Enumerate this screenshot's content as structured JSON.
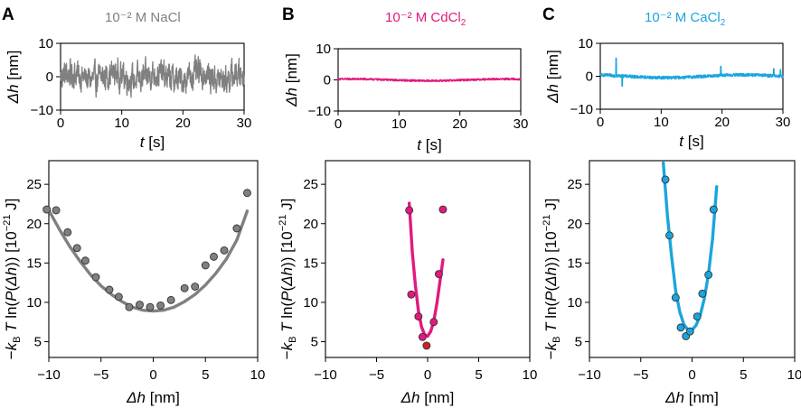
{
  "figure": {
    "panels": [
      {
        "letter": "A",
        "title": "10⁻² M NaCl",
        "color": "#808080",
        "trace": {
          "xlabel_sym": "t",
          "xlabel_unit": " [s]",
          "ylabel_sym": "Δh",
          "ylabel_unit": " [nm]",
          "xlim": [
            0,
            30
          ],
          "ylim": [
            -10,
            10
          ],
          "xticks": [
            0,
            10,
            20,
            30
          ],
          "yticks": [
            -10,
            0,
            10
          ],
          "xticklabels": [
            "0",
            "10",
            "20",
            "30"
          ],
          "yticklabels": [
            "−10",
            "0",
            "10"
          ],
          "amplitude": 3.6,
          "spike_times": [],
          "spike_heights": []
        },
        "potential": {
          "xlim": [
            -10,
            10
          ],
          "ylim": [
            3,
            28
          ],
          "xticks": [
            -10,
            -5,
            0,
            5,
            10
          ],
          "yticks": [
            5,
            10,
            15,
            20,
            25
          ],
          "xticklabels": [
            "−10",
            "−5",
            "0",
            "5",
            "10"
          ],
          "yticklabels": [
            "5",
            "10",
            "15",
            "20",
            "25"
          ],
          "points_x": [
            -10.2,
            -9.3,
            -8.2,
            -7.3,
            -6.5,
            -5.5,
            -4.2,
            -3.3,
            -2.3,
            -1.3,
            -0.3,
            0.7,
            1.7,
            3.0,
            4.0,
            5.0,
            5.8,
            6.8,
            8.0,
            9.0
          ],
          "points_y": [
            21.8,
            21.7,
            18.9,
            16.9,
            15.3,
            13.2,
            11.6,
            10.7,
            9.4,
            9.7,
            9.4,
            9.6,
            10.3,
            11.8,
            12.0,
            14.7,
            15.8,
            16.6,
            19.4,
            23.9
          ],
          "fit_x": [
            -10.0,
            -9.0,
            -8.0,
            -7.0,
            -6.0,
            -5.0,
            -4.0,
            -3.0,
            -2.0,
            -1.0,
            0.0,
            1.0,
            2.0,
            3.0,
            4.0,
            5.0,
            6.0,
            7.0,
            8.0,
            9.0
          ],
          "fit_y": [
            21.7,
            19.3,
            17.1,
            15.2,
            13.5,
            12.1,
            11.0,
            10.1,
            9.4,
            9.0,
            8.9,
            9.0,
            9.4,
            10.1,
            11.0,
            12.2,
            13.7,
            15.5,
            17.9,
            21.6
          ],
          "highlight_x": null,
          "highlight_y": null
        }
      },
      {
        "letter": "B",
        "title_main": "10⁻² M CdCl",
        "title_sub": "2",
        "color": "#e2197e",
        "trace": {
          "xlabel_sym": "t",
          "xlabel_unit": " [s]",
          "ylabel_sym": "Δh",
          "ylabel_unit": " [nm]",
          "xlim": [
            0,
            30
          ],
          "ylim": [
            -10,
            10
          ],
          "xticks": [
            0,
            10,
            20,
            30
          ],
          "yticks": [
            -10,
            0,
            10
          ],
          "xticklabels": [
            "0",
            "10",
            "20",
            "30"
          ],
          "yticklabels": [
            "−10",
            "0",
            "10"
          ],
          "amplitude": 0.4,
          "spike_times": [],
          "spike_heights": []
        },
        "potential": {
          "xlim": [
            -10,
            10
          ],
          "ylim": [
            3,
            28
          ],
          "xticks": [
            -10,
            -5,
            0,
            5,
            10
          ],
          "yticks": [
            5,
            10,
            15,
            20,
            25
          ],
          "xticklabels": [
            "−10",
            "−5",
            "0",
            "5",
            "10"
          ],
          "yticklabels": [
            "5",
            "10",
            "15",
            "20",
            "25"
          ],
          "points_x": [
            -1.8,
            -1.6,
            -0.9,
            -0.5,
            0.6,
            1.1,
            1.5
          ],
          "points_y": [
            21.7,
            11.0,
            8.2,
            5.6,
            7.5,
            13.6,
            21.8
          ],
          "fit_x": [
            -1.8,
            -1.5,
            -1.2,
            -0.9,
            -0.6,
            -0.3,
            0.0,
            0.3,
            0.6,
            0.9,
            1.2,
            1.5
          ],
          "fit_y": [
            22.6,
            16.4,
            12.2,
            8.9,
            6.9,
            5.9,
            5.7,
            6.3,
            7.6,
            9.8,
            12.6,
            15.4
          ],
          "highlight_x": -0.1,
          "highlight_y": 4.5,
          "highlight_color": "#d41f26"
        }
      },
      {
        "letter": "C",
        "title_main": "10⁻² M CaCl",
        "title_sub": "2",
        "color": "#1ba5de",
        "trace": {
          "xlabel_sym": "t",
          "xlabel_unit": " [s]",
          "ylabel_sym": "Δh",
          "ylabel_unit": " [nm]",
          "xlim": [
            0,
            30
          ],
          "ylim": [
            -10,
            10
          ],
          "xticks": [
            0,
            10,
            20,
            30
          ],
          "yticks": [
            -10,
            0,
            10
          ],
          "xticklabels": [
            "0",
            "10",
            "20",
            "30"
          ],
          "yticklabels": [
            "−10",
            "0",
            "10"
          ],
          "amplitude": 0.6,
          "spike_times": [
            2.6,
            3.6,
            19.8,
            28.5,
            29.6
          ],
          "spike_heights": [
            5.5,
            -3.0,
            3.0,
            2.3,
            2.0
          ]
        },
        "potential": {
          "xlim": [
            -10,
            10
          ],
          "ylim": [
            3,
            28
          ],
          "xticks": [
            -10,
            -5,
            0,
            5,
            10
          ],
          "yticks": [
            5,
            10,
            15,
            20,
            25
          ],
          "xticklabels": [
            "−10",
            "−5",
            "0",
            "5",
            "10"
          ],
          "yticklabels": [
            "5",
            "10",
            "15",
            "20",
            "25"
          ],
          "points_x": [
            -2.6,
            -2.2,
            -1.6,
            -1.1,
            -0.6,
            -0.2,
            0.5,
            1.0,
            1.6,
            2.1
          ],
          "points_y": [
            25.6,
            18.5,
            10.6,
            6.8,
            5.7,
            6.3,
            8.2,
            11.1,
            13.5,
            21.8
          ],
          "fit_x": [
            -2.8,
            -2.4,
            -2.0,
            -1.6,
            -1.2,
            -0.8,
            -0.4,
            0.0,
            0.4,
            0.8,
            1.2,
            1.6,
            2.0,
            2.4
          ],
          "fit_y": [
            27.7,
            21.0,
            15.9,
            11.5,
            8.8,
            7.2,
            6.5,
            6.5,
            7.1,
            8.4,
            10.5,
            13.6,
            18.1,
            24.7
          ],
          "highlight_x": null,
          "highlight_y": null
        }
      }
    ],
    "trace_axis_labels": {
      "x": "t [s]",
      "y": "Δh [nm]"
    },
    "potential_axis_labels": {
      "x": "Δh [nm]",
      "y_prefix": "−",
      "y_k": "k",
      "y_kb_sub": "B",
      "y_T": " T",
      "y_ln": " ln(",
      "y_P": "P",
      "y_paren_open": "(",
      "y_dh": "Δh",
      "y_paren_close": "))",
      "y_unit_open": " [10",
      "y_unit_exp": "−21",
      "y_unit_close": " J]"
    }
  },
  "chart_data": [
    {
      "type": "line",
      "title": "10⁻² M NaCl",
      "xlabel": "t [s]",
      "ylabel": "Δh [nm]",
      "xlim": [
        0,
        30
      ],
      "ylim": [
        -10,
        10
      ],
      "series": [
        {
          "name": "NaCl trace",
          "description": "noisy fluctuation ~±7 nm over 0–30 s"
        }
      ]
    },
    {
      "type": "line",
      "title": "10⁻² M CdCl2",
      "xlabel": "t [s]",
      "ylabel": "Δh [nm]",
      "xlim": [
        0,
        30
      ],
      "ylim": [
        -10,
        10
      ],
      "series": [
        {
          "name": "CdCl2 trace",
          "description": "small fluctuation ~±1 nm"
        }
      ]
    },
    {
      "type": "line",
      "title": "10⁻² M CaCl2",
      "xlabel": "t [s]",
      "ylabel": "Δh [nm]",
      "xlim": [
        0,
        30
      ],
      "ylim": [
        -10,
        10
      ],
      "series": [
        {
          "name": "CaCl2 trace",
          "description": "small fluctuation ~±1 nm with spikes"
        }
      ]
    },
    {
      "type": "scatter",
      "xlabel": "Δh [nm]",
      "ylabel": "−kB T ln(P(Δh)) [10⁻²¹ J]",
      "xlim": [
        -10,
        10
      ],
      "ylim": [
        3,
        28
      ],
      "series": [
        {
          "name": "NaCl",
          "x": [
            -10.2,
            -9.3,
            -8.2,
            -7.3,
            -6.5,
            -5.5,
            -4.2,
            -3.3,
            -2.3,
            -1.3,
            -0.3,
            0.7,
            1.7,
            3.0,
            4.0,
            5.0,
            5.8,
            6.8,
            8.0,
            9.0
          ],
          "y": [
            21.8,
            21.7,
            18.9,
            16.9,
            15.3,
            13.2,
            11.6,
            10.7,
            9.4,
            9.7,
            9.4,
            9.6,
            10.3,
            11.8,
            12.0,
            14.7,
            15.8,
            16.6,
            19.4,
            23.9
          ]
        }
      ]
    },
    {
      "type": "scatter",
      "xlabel": "Δh [nm]",
      "ylabel": "−kB T ln(P(Δh)) [10⁻²¹ J]",
      "xlim": [
        -10,
        10
      ],
      "ylim": [
        3,
        28
      ],
      "series": [
        {
          "name": "CdCl2",
          "x": [
            -1.8,
            -1.6,
            -0.9,
            -0.5,
            -0.1,
            0.6,
            1.1,
            1.5
          ],
          "y": [
            21.7,
            11.0,
            8.2,
            5.6,
            4.5,
            7.5,
            13.6,
            21.8
          ]
        }
      ]
    },
    {
      "type": "scatter",
      "xlabel": "Δh [nm]",
      "ylabel": "−kB T ln(P(Δh)) [10⁻²¹ J]",
      "xlim": [
        -10,
        10
      ],
      "ylim": [
        3,
        28
      ],
      "series": [
        {
          "name": "CaCl2",
          "x": [
            -2.6,
            -2.2,
            -1.6,
            -1.1,
            -0.6,
            -0.2,
            0.5,
            1.0,
            1.6,
            2.1
          ],
          "y": [
            25.6,
            18.5,
            10.6,
            6.8,
            5.7,
            6.3,
            8.2,
            11.1,
            13.5,
            21.8
          ]
        }
      ]
    }
  ]
}
